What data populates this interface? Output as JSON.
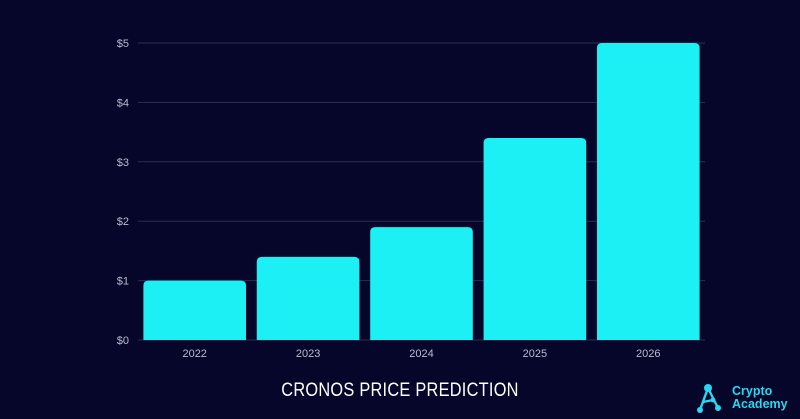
{
  "chart_data": {
    "type": "bar",
    "title": "CRONOS PRICE PREDICTION",
    "categories": [
      "2022",
      "2023",
      "2024",
      "2025",
      "2026"
    ],
    "values": [
      1.0,
      1.4,
      1.9,
      3.4,
      5.0
    ],
    "ylim": [
      0,
      5
    ],
    "y_ticks": [
      "$0",
      "$1",
      "$2",
      "$3",
      "$4",
      "$5"
    ],
    "xlabel": "",
    "ylabel": "",
    "grid": true,
    "colors": {
      "bar": "#1cf0f4",
      "grid": "#2a2e55",
      "background": "#05062a"
    }
  },
  "brand": {
    "line1": "Crypto",
    "line2": "Academy",
    "logo_icon": "network-a-icon",
    "color": "#2ad7f0"
  }
}
